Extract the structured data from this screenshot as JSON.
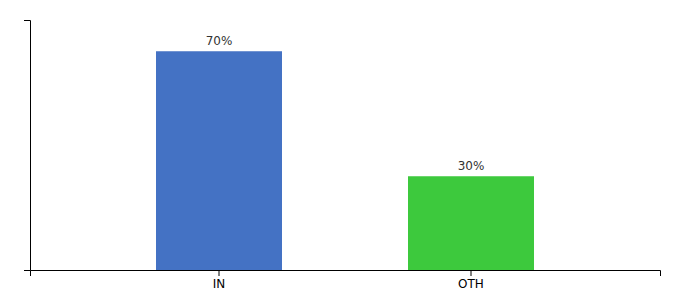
{
  "chart_data": {
    "type": "bar",
    "categories": [
      "IN",
      "OTH"
    ],
    "values": [
      70,
      30
    ],
    "value_labels": [
      "70%",
      "30%"
    ],
    "colors": [
      "#4472c4",
      "#3dc93d"
    ],
    "ylim": [
      0,
      80
    ],
    "data_labels": true,
    "tick_labels": "x"
  }
}
